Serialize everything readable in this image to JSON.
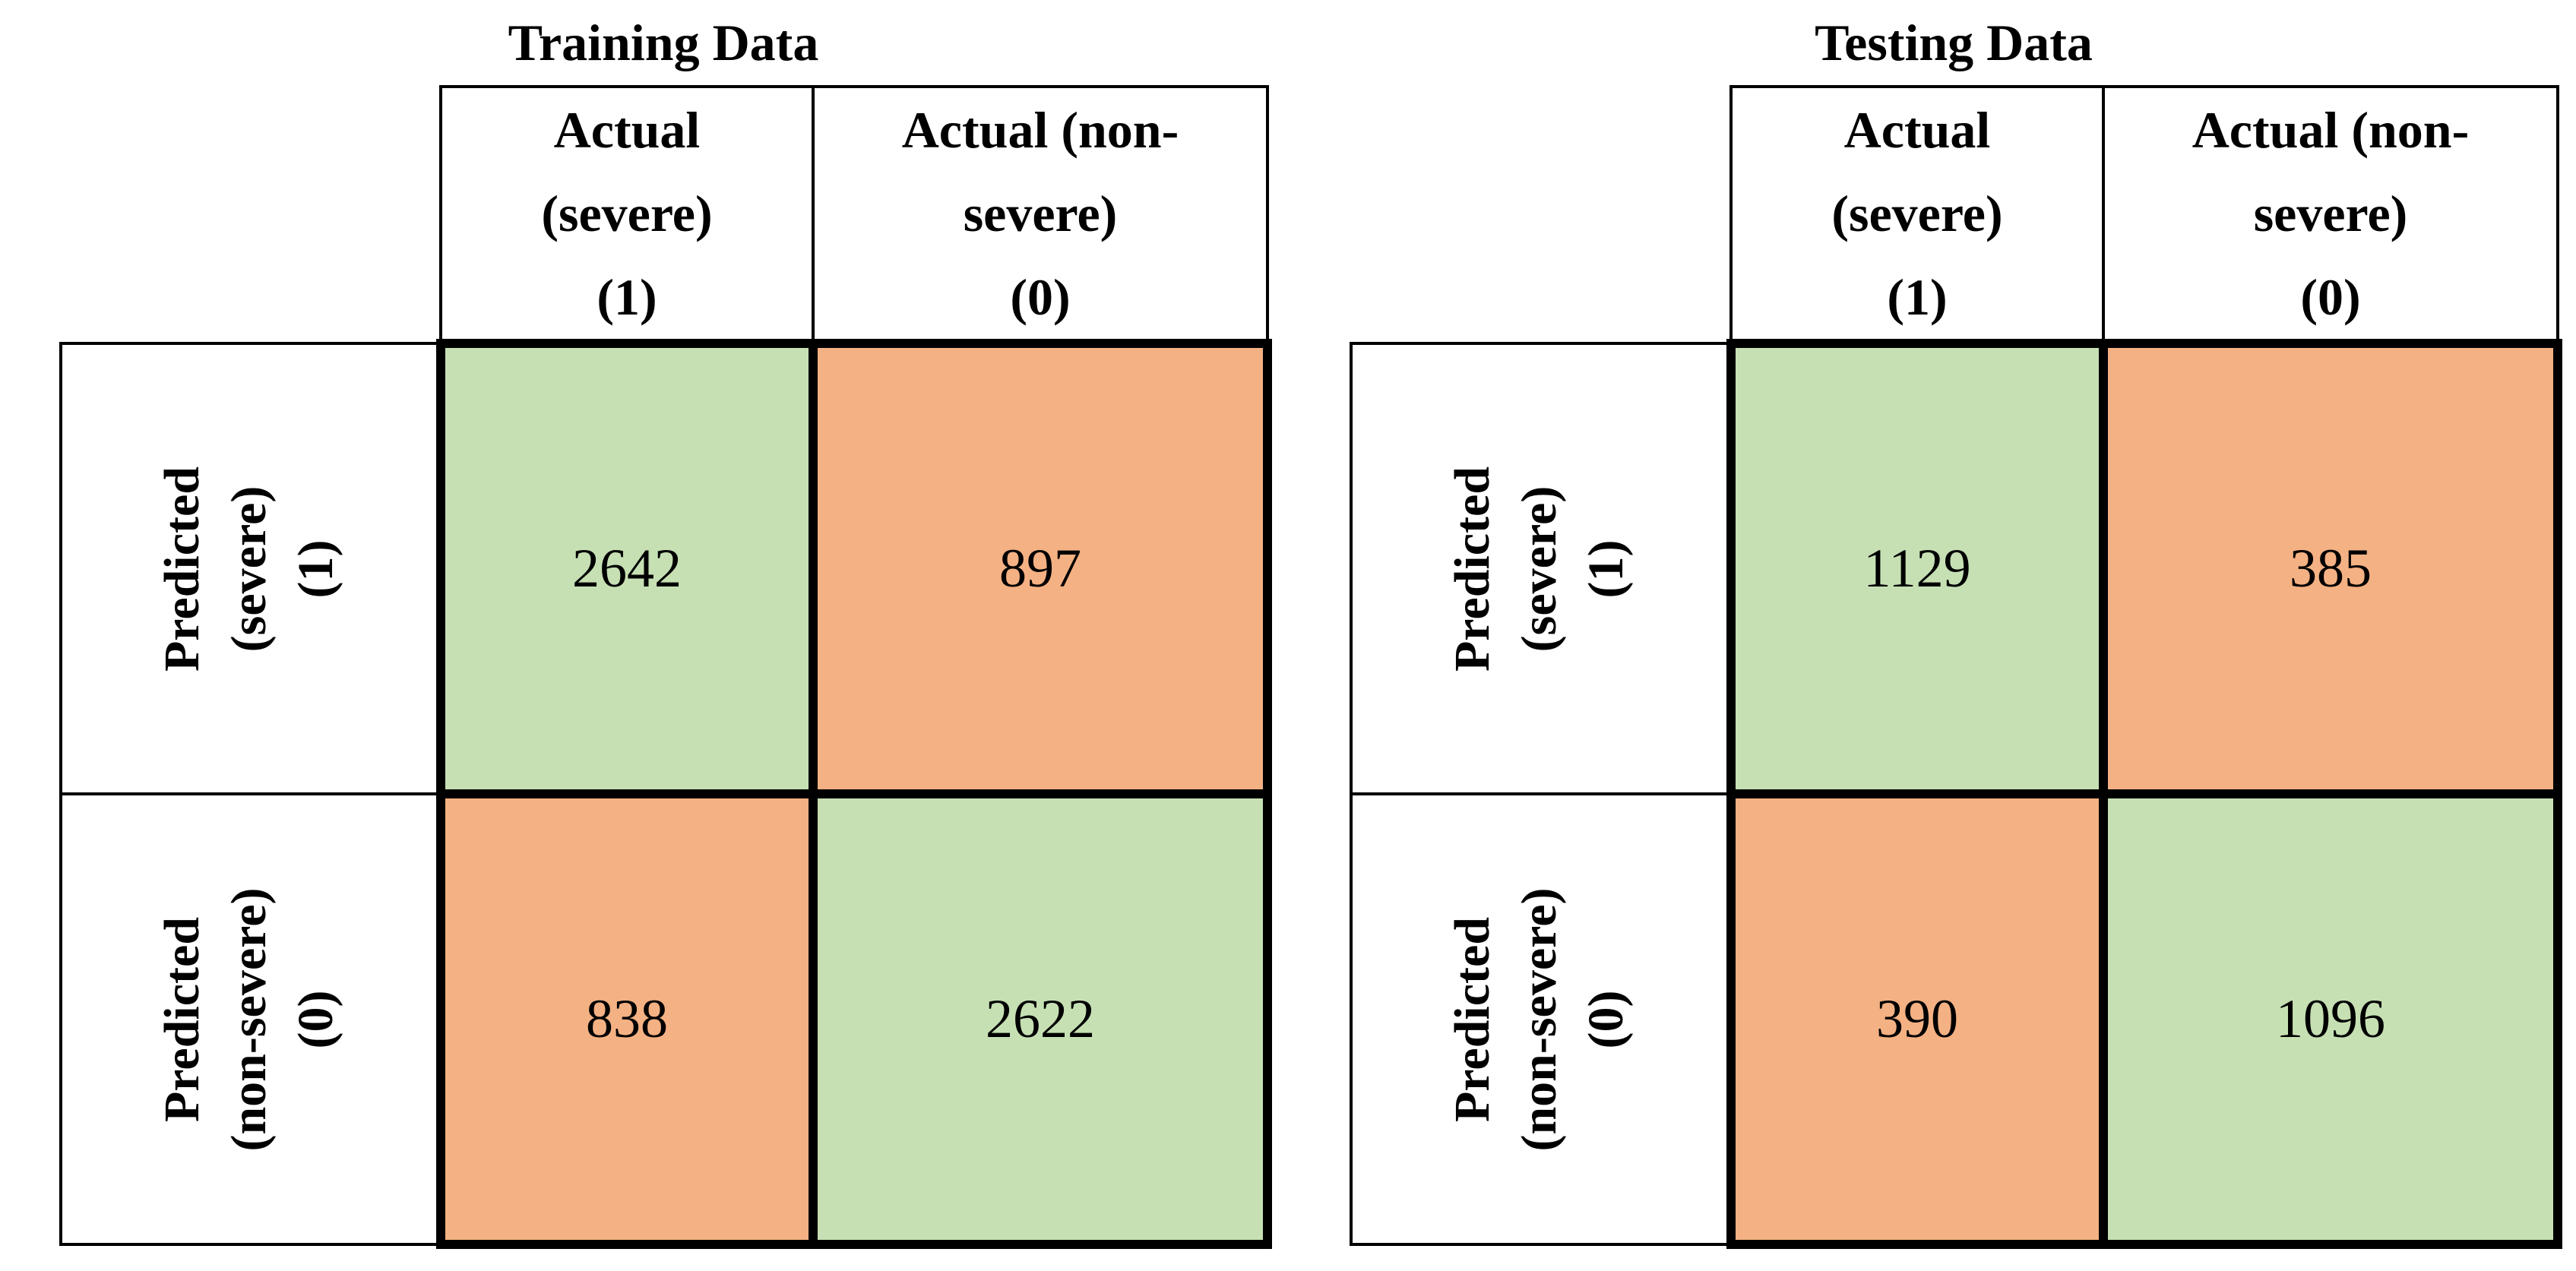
{
  "figure": {
    "background": "#ffffff"
  },
  "colors": {
    "correct_cell_green": "#c6e0b4",
    "incorrect_cell_orange": "#f4b183",
    "border_black": "#000000"
  },
  "tables": [
    {
      "title": "Training Data",
      "columns": [
        {
          "line1": "Actual",
          "line2": "(severe)",
          "line3": "(1)"
        },
        {
          "line1": "Actual (non-",
          "line2": "severe)",
          "line3": "(0)"
        }
      ],
      "rows": [
        {
          "header": {
            "line1": "Predicted",
            "line2": "(severe)",
            "line3": "(1)"
          },
          "cells": [
            {
              "value": "2642",
              "status": "correct"
            },
            {
              "value": "897",
              "status": "incorrect"
            }
          ]
        },
        {
          "header": {
            "line1": "Predicted",
            "line2": "(non-severe)",
            "line3": "(0)"
          },
          "cells": [
            {
              "value": "838",
              "status": "incorrect"
            },
            {
              "value": "2622",
              "status": "correct"
            }
          ]
        }
      ]
    },
    {
      "title": "Testing Data",
      "columns": [
        {
          "line1": "Actual",
          "line2": "(severe)",
          "line3": "(1)"
        },
        {
          "line1": "Actual (non-",
          "line2": "severe)",
          "line3": "(0)"
        }
      ],
      "rows": [
        {
          "header": {
            "line1": "Predicted",
            "line2": "(severe)",
            "line3": "(1)"
          },
          "cells": [
            {
              "value": "1129",
              "status": "correct"
            },
            {
              "value": "385",
              "status": "incorrect"
            }
          ]
        },
        {
          "header": {
            "line1": "Predicted",
            "line2": "(non-severe)",
            "line3": "(0)"
          },
          "cells": [
            {
              "value": "390",
              "status": "incorrect"
            },
            {
              "value": "1096",
              "status": "correct"
            }
          ]
        }
      ]
    }
  ],
  "chart_data": [
    {
      "type": "table",
      "title": "Training Data",
      "columns": [
        "Actual (severe) (1)",
        "Actual (non-severe) (0)"
      ],
      "rows": [
        "Predicted (severe) (1)",
        "Predicted (non-severe) (0)"
      ],
      "values": [
        [
          2642,
          897
        ],
        [
          838,
          2622
        ]
      ],
      "cell_status": [
        [
          "correct",
          "incorrect"
        ],
        [
          "incorrect",
          "correct"
        ]
      ]
    },
    {
      "type": "table",
      "title": "Testing Data",
      "columns": [
        "Actual (severe) (1)",
        "Actual (non-severe) (0)"
      ],
      "rows": [
        "Predicted (severe) (1)",
        "Predicted (non-severe) (0)"
      ],
      "values": [
        [
          1129,
          385
        ],
        [
          390,
          1096
        ]
      ],
      "cell_status": [
        [
          "correct",
          "incorrect"
        ],
        [
          "incorrect",
          "correct"
        ]
      ]
    }
  ]
}
